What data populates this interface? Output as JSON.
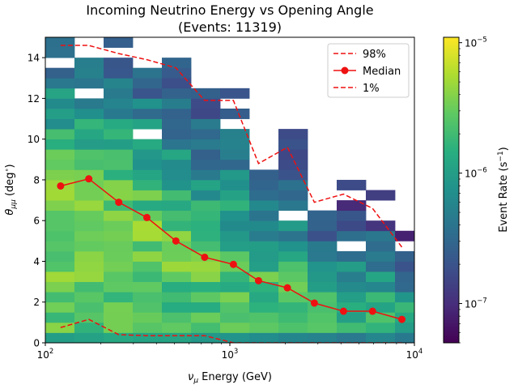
{
  "chart_data": {
    "type": "heatmap",
    "title_line1": "Incoming Neutrino Energy vs Opening Angle",
    "title_line2": "(Events: 11319)",
    "xlabel": "ν",
    "xlabel_sub": "μ",
    "xlabel_rest": " Energy (GeV)",
    "ylabel": "θ",
    "ylabel_sub": "μμ",
    "ylabel_rest": " (deg",
    "ylabel_sup": "∘",
    "ylabel_close": ")",
    "x_scale": "log",
    "xlim": [
      100,
      10000
    ],
    "ylim": [
      0,
      15
    ],
    "x_ticks": [
      {
        "v": 100,
        "base": "10",
        "exp": "2"
      },
      {
        "v": 1000,
        "base": "10",
        "exp": "3"
      },
      {
        "v": 10000,
        "base": "10",
        "exp": "4"
      }
    ],
    "y_ticks": [
      0,
      2,
      4,
      6,
      8,
      10,
      12,
      14
    ],
    "x_bin_edges": [
      100,
      143.8,
      206.9,
      297.6,
      428.1,
      615.8,
      885.9,
      1274.3,
      1833.1,
      2636.7,
      3792.7,
      5455.6,
      7847.6,
      10000
    ],
    "y_bin_step": 0.5,
    "colorbar": {
      "label": "Event Rate (s",
      "label_sup": "−1",
      "label_close": ")",
      "scale": "log",
      "range": [
        5e-08,
        1.1e-05
      ],
      "ticks": [
        {
          "v": 1e-05,
          "base": "10",
          "exp": "−5"
        },
        {
          "v": 1e-06,
          "base": "10",
          "exp": "−6"
        },
        {
          "v": 1e-07,
          "base": "10",
          "exp": "−7"
        }
      ]
    },
    "series": [
      {
        "name": "98%",
        "style": "dashed",
        "color": "#ee1111",
        "x": [
          121,
          172,
          250,
          355,
          510,
          730,
          1045,
          1430,
          2050,
          2870,
          4130,
          5930,
          8550
        ],
        "y": [
          14.6,
          14.6,
          14.2,
          13.9,
          13.5,
          11.9,
          11.9,
          8.8,
          9.6,
          6.9,
          7.3,
          6.6,
          4.7
        ]
      },
      {
        "name": "Median",
        "style": "solid-marker",
        "color": "#ee1111",
        "x": [
          121,
          172,
          250,
          355,
          510,
          730,
          1045,
          1430,
          2050,
          2870,
          4130,
          5930,
          8550
        ],
        "y": [
          7.7,
          8.05,
          6.9,
          6.15,
          5.0,
          4.2,
          3.85,
          3.05,
          2.7,
          1.95,
          1.55,
          1.55,
          1.15
        ]
      },
      {
        "name": "1%",
        "style": "dashed",
        "color": "#ee1111",
        "x": [
          121,
          172,
          250,
          355,
          510,
          730,
          1045,
          1430,
          2050,
          2870,
          4130,
          5930,
          8550
        ],
        "y": [
          0.75,
          1.15,
          0.4,
          0.35,
          0.35,
          0.35,
          0.0,
          0.0,
          0.0,
          0.0,
          0.0,
          0.0,
          0.0
        ]
      }
    ],
    "legend_position": "upper-right"
  }
}
